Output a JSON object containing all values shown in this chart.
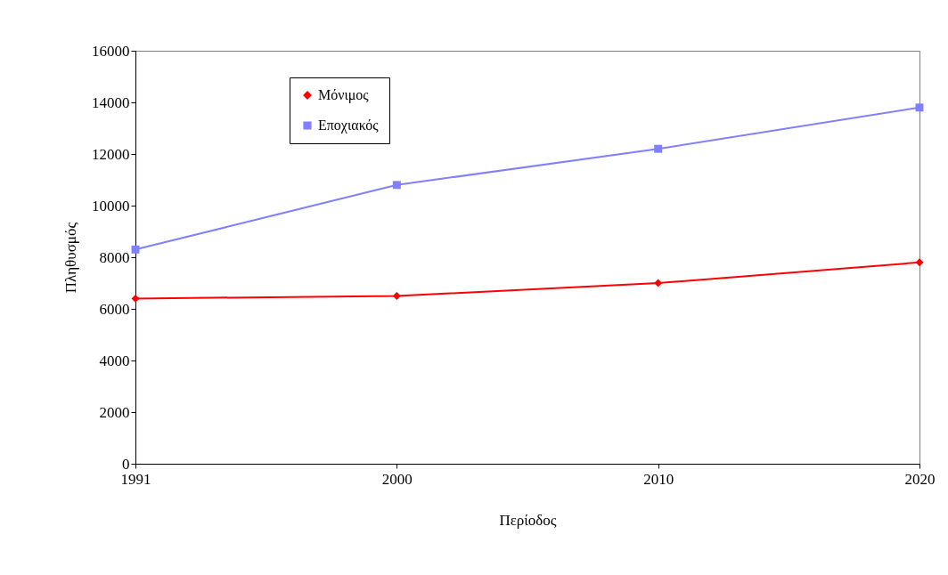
{
  "chart_data": {
    "type": "line",
    "xlabel": "Περίοδος",
    "ylabel": "Πληθυσμός",
    "categories": [
      "1991",
      "2000",
      "2010",
      "2020"
    ],
    "series": [
      {
        "name": "Μόνιμος",
        "color": "#ff0000",
        "marker": "diamond",
        "values": [
          6400,
          6500,
          7000,
          7800
        ]
      },
      {
        "name": "Εποχιακός",
        "color": "#8080ff",
        "marker": "square",
        "values": [
          8300,
          10800,
          12200,
          13800
        ]
      }
    ],
    "ylim": [
      0,
      16000
    ],
    "yticks": [
      0,
      2000,
      4000,
      6000,
      8000,
      10000,
      12000,
      14000,
      16000
    ],
    "grid": false,
    "legend": "top left",
    "line_style": "solid"
  }
}
